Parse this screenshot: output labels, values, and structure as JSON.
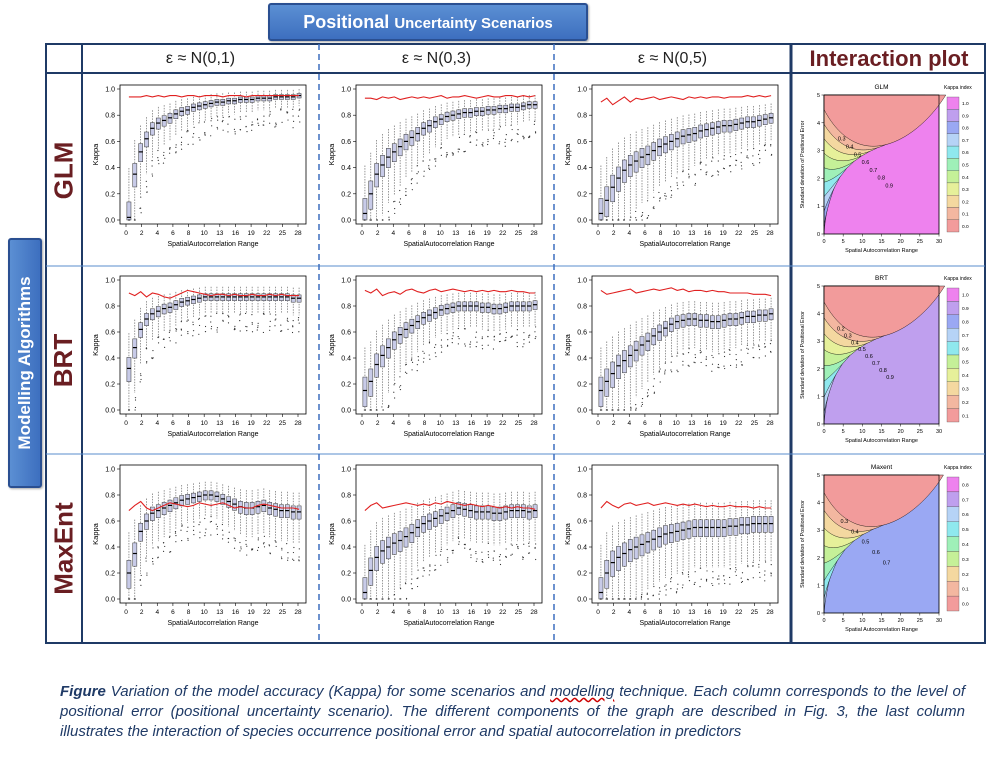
{
  "header": {
    "title_main": "Positional",
    "title_rest": "Uncertainty Scenarios"
  },
  "side_label": "Modelling Algorithms",
  "columns": [
    "ε ≈ N(0,1)",
    "ε ≈ N(0,3)",
    "ε ≈ N(0,5)"
  ],
  "interaction_title": "Interaction plot",
  "rows": [
    "GLM",
    "BRT",
    "MaxEnt"
  ],
  "caption": {
    "lead": "Figure",
    "part1": " Variation of the model accuracy (Kappa) for some scenarios and ",
    "underlined": "modelling",
    "part2": " technique. Each column corresponds to the level of positional error (positional uncertainty scenario). The different components of the graph are described in Fig. 3, the last column illustrates the interaction of species occurrence positional error and spatial autocorrelation in predictors"
  },
  "colors": {
    "frame": "#1f3a66",
    "title_bg": "#4a7fcc",
    "row_label": "#6a1e22",
    "box_fill": "#c8cbe8",
    "median_line": "#e02020"
  },
  "chart_data": [
    {
      "type": "box",
      "model": "GLM",
      "scenario": "ε ≈ N(0,1)",
      "xlabel": "SpatialAutocorrelation Range",
      "ylabel": "Kappa",
      "xticks": [
        "0",
        "2",
        "4",
        "6",
        "8",
        "10",
        "13",
        "16",
        "19",
        "22",
        "25",
        "28"
      ],
      "ylim": [
        0,
        1
      ],
      "yticks": [
        "0.0",
        "0.2",
        "0.4",
        "0.6",
        "0.8",
        "1.0"
      ],
      "box_medians": [
        0.02,
        0.35,
        0.52,
        0.62,
        0.7,
        0.74,
        0.76,
        0.78,
        0.81,
        0.83,
        0.84,
        0.86,
        0.87,
        0.88,
        0.89,
        0.9,
        0.9,
        0.91,
        0.91,
        0.92,
        0.92,
        0.92,
        0.93,
        0.93,
        0.93,
        0.94,
        0.94,
        0.94,
        0.94,
        0.95
      ],
      "red_line": [
        0.94,
        0.94,
        0.94,
        0.95,
        0.94,
        0.95,
        0.94,
        0.95,
        0.95,
        0.94,
        0.95,
        0.95,
        0.94,
        0.95,
        0.95,
        0.95,
        0.94,
        0.95,
        0.95,
        0.95,
        0.94,
        0.95,
        0.95,
        0.95,
        0.95,
        0.95,
        0.95,
        0.95,
        0.95,
        0.95
      ]
    },
    {
      "type": "box",
      "model": "GLM",
      "scenario": "ε ≈ N(0,3)",
      "xlabel": "SpatialAutocorrelation Range",
      "ylabel": "Kappa",
      "xticks": [
        "0",
        "2",
        "4",
        "6",
        "8",
        "10",
        "13",
        "16",
        "19",
        "22",
        "25",
        "28"
      ],
      "ylim": [
        0,
        1
      ],
      "yticks": [
        "0.0",
        "0.2",
        "0.4",
        "0.6",
        "0.8",
        "1.0"
      ],
      "box_medians": [
        0.05,
        0.2,
        0.35,
        0.42,
        0.48,
        0.52,
        0.56,
        0.6,
        0.63,
        0.66,
        0.7,
        0.72,
        0.75,
        0.77,
        0.79,
        0.8,
        0.81,
        0.82,
        0.82,
        0.83,
        0.83,
        0.84,
        0.84,
        0.85,
        0.85,
        0.86,
        0.86,
        0.87,
        0.88,
        0.88
      ],
      "red_line": [
        0.93,
        0.93,
        0.92,
        0.94,
        0.93,
        0.94,
        0.92,
        0.93,
        0.94,
        0.93,
        0.94,
        0.93,
        0.94,
        0.95,
        0.93,
        0.94,
        0.94,
        0.95,
        0.94,
        0.93,
        0.94,
        0.95,
        0.94,
        0.94,
        0.95,
        0.95,
        0.94,
        0.95,
        0.94,
        0.95
      ]
    },
    {
      "type": "box",
      "model": "GLM",
      "scenario": "ε ≈ N(0,5)",
      "xlabel": "SpatialAutocorrelation Range",
      "ylabel": "Kappa",
      "xticks": [
        "0",
        "2",
        "4",
        "6",
        "8",
        "10",
        "13",
        "16",
        "19",
        "22",
        "25",
        "28"
      ],
      "ylim": [
        0,
        1
      ],
      "yticks": [
        "0.0",
        "0.2",
        "0.4",
        "0.6",
        "0.8",
        "1.0"
      ],
      "box_medians": [
        0.05,
        0.15,
        0.25,
        0.32,
        0.38,
        0.42,
        0.45,
        0.48,
        0.5,
        0.53,
        0.56,
        0.58,
        0.6,
        0.62,
        0.64,
        0.65,
        0.66,
        0.68,
        0.69,
        0.7,
        0.71,
        0.72,
        0.72,
        0.73,
        0.74,
        0.75,
        0.75,
        0.76,
        0.77,
        0.78
      ],
      "red_line": [
        0.9,
        0.93,
        0.88,
        0.91,
        0.94,
        0.9,
        0.93,
        0.92,
        0.93,
        0.94,
        0.92,
        0.93,
        0.94,
        0.93,
        0.92,
        0.94,
        0.93,
        0.94,
        0.93,
        0.94,
        0.94,
        0.93,
        0.94,
        0.94,
        0.94,
        0.95,
        0.94,
        0.95,
        0.94,
        0.95
      ]
    },
    {
      "type": "box",
      "model": "BRT",
      "scenario": "ε ≈ N(0,1)",
      "xlabel": "SpatialAutocorrelation Range",
      "ylabel": "Kappa",
      "xticks": [
        "0",
        "2",
        "4",
        "6",
        "8",
        "10",
        "13",
        "16",
        "19",
        "22",
        "25",
        "28"
      ],
      "ylim": [
        0,
        1
      ],
      "yticks": [
        "0.0",
        "0.2",
        "0.4",
        "0.6",
        "0.8",
        "1.0"
      ],
      "box_medians": [
        0.32,
        0.48,
        0.62,
        0.7,
        0.74,
        0.76,
        0.78,
        0.79,
        0.81,
        0.83,
        0.84,
        0.85,
        0.86,
        0.87,
        0.87,
        0.87,
        0.87,
        0.87,
        0.87,
        0.87,
        0.87,
        0.87,
        0.87,
        0.87,
        0.87,
        0.87,
        0.87,
        0.87,
        0.86,
        0.86
      ],
      "red_line": [
        0.9,
        0.88,
        0.91,
        0.87,
        0.9,
        0.89,
        0.87,
        0.86,
        0.88,
        0.9,
        0.92,
        0.91,
        0.9,
        0.89,
        0.88,
        0.89,
        0.89,
        0.88,
        0.89,
        0.88,
        0.88,
        0.89,
        0.88,
        0.88,
        0.89,
        0.88,
        0.89,
        0.88,
        0.88,
        0.88
      ]
    },
    {
      "type": "box",
      "model": "BRT",
      "scenario": "ε ≈ N(0,3)",
      "xlabel": "SpatialAutocorrelation Range",
      "ylabel": "Kappa",
      "xticks": [
        "0",
        "2",
        "4",
        "6",
        "8",
        "10",
        "13",
        "16",
        "19",
        "22",
        "25",
        "28"
      ],
      "ylim": [
        0,
        1
      ],
      "yticks": [
        "0.0",
        "0.2",
        "0.4",
        "0.6",
        "0.8",
        "1.0"
      ],
      "box_medians": [
        0.15,
        0.22,
        0.35,
        0.42,
        0.48,
        0.54,
        0.58,
        0.62,
        0.65,
        0.68,
        0.71,
        0.73,
        0.75,
        0.77,
        0.78,
        0.79,
        0.8,
        0.8,
        0.8,
        0.8,
        0.79,
        0.79,
        0.78,
        0.78,
        0.79,
        0.8,
        0.8,
        0.8,
        0.8,
        0.81
      ],
      "red_line": [
        0.92,
        0.9,
        0.93,
        0.88,
        0.9,
        0.91,
        0.89,
        0.92,
        0.93,
        0.91,
        0.9,
        0.92,
        0.93,
        0.91,
        0.92,
        0.93,
        0.92,
        0.91,
        0.92,
        0.91,
        0.92,
        0.91,
        0.92,
        0.91,
        0.91,
        0.92,
        0.91,
        0.91,
        0.9,
        0.9
      ]
    },
    {
      "type": "box",
      "model": "BRT",
      "scenario": "ε ≈ N(0,5)",
      "xlabel": "SpatialAutocorrelation Range",
      "ylabel": "Kappa",
      "xticks": [
        "0",
        "2",
        "4",
        "6",
        "8",
        "10",
        "13",
        "16",
        "19",
        "22",
        "25",
        "28"
      ],
      "ylim": [
        0,
        1
      ],
      "yticks": [
        "0.0",
        "0.2",
        "0.4",
        "0.6",
        "0.8",
        "1.0"
      ],
      "box_medians": [
        0.15,
        0.22,
        0.28,
        0.34,
        0.38,
        0.42,
        0.46,
        0.5,
        0.53,
        0.57,
        0.6,
        0.63,
        0.66,
        0.68,
        0.69,
        0.7,
        0.7,
        0.69,
        0.69,
        0.68,
        0.68,
        0.69,
        0.7,
        0.7,
        0.71,
        0.72,
        0.72,
        0.73,
        0.73,
        0.74
      ],
      "red_line": [
        0.92,
        0.89,
        0.9,
        0.91,
        0.92,
        0.93,
        0.9,
        0.91,
        0.92,
        0.93,
        0.92,
        0.93,
        0.94,
        0.92,
        0.93,
        0.91,
        0.92,
        0.92,
        0.91,
        0.92,
        0.91,
        0.91,
        0.9,
        0.9,
        0.9,
        0.9,
        0.89,
        0.89,
        0.89,
        0.88
      ]
    },
    {
      "type": "box",
      "model": "MaxEnt",
      "scenario": "ε ≈ N(0,1)",
      "xlabel": "SpatialAutocorrelation Range",
      "ylabel": "Kappa",
      "xticks": [
        "0",
        "2",
        "4",
        "6",
        "8",
        "10",
        "13",
        "16",
        "19",
        "22",
        "25",
        "28"
      ],
      "ylim": [
        0,
        1
      ],
      "yticks": [
        "0.0",
        "0.2",
        "0.4",
        "0.6",
        "0.8",
        "1.0"
      ],
      "box_medians": [
        0.2,
        0.35,
        0.52,
        0.6,
        0.66,
        0.68,
        0.7,
        0.72,
        0.74,
        0.76,
        0.77,
        0.78,
        0.79,
        0.8,
        0.8,
        0.79,
        0.77,
        0.75,
        0.73,
        0.71,
        0.7,
        0.7,
        0.71,
        0.72,
        0.7,
        0.69,
        0.68,
        0.68,
        0.67,
        0.67
      ],
      "red_line": [
        0.68,
        0.72,
        0.75,
        0.7,
        0.68,
        0.7,
        0.72,
        0.74,
        0.73,
        0.72,
        0.71,
        0.72,
        0.74,
        0.73,
        0.72,
        0.73,
        0.74,
        0.72,
        0.7,
        0.71,
        0.7,
        0.7,
        0.72,
        0.73,
        0.72,
        0.71,
        0.7,
        0.7,
        0.7,
        0.69
      ]
    },
    {
      "type": "box",
      "model": "MaxEnt",
      "scenario": "ε ≈ N(0,3)",
      "xlabel": "SpatialAutocorrelation Range",
      "ylabel": "Kappa",
      "xticks": [
        "0",
        "2",
        "4",
        "6",
        "8",
        "10",
        "13",
        "16",
        "19",
        "22",
        "25",
        "28"
      ],
      "ylim": [
        0,
        1
      ],
      "yticks": [
        "0.0",
        "0.2",
        "0.4",
        "0.6",
        "0.8",
        "1.0"
      ],
      "box_medians": [
        0.05,
        0.22,
        0.32,
        0.37,
        0.4,
        0.43,
        0.45,
        0.48,
        0.51,
        0.55,
        0.58,
        0.6,
        0.62,
        0.64,
        0.66,
        0.68,
        0.7,
        0.69,
        0.68,
        0.67,
        0.67,
        0.67,
        0.66,
        0.66,
        0.67,
        0.68,
        0.68,
        0.68,
        0.67,
        0.68
      ],
      "red_line": [
        0.68,
        0.72,
        0.74,
        0.7,
        0.71,
        0.72,
        0.73,
        0.74,
        0.73,
        0.72,
        0.73,
        0.72,
        0.74,
        0.73,
        0.75,
        0.74,
        0.73,
        0.72,
        0.73,
        0.72,
        0.71,
        0.72,
        0.71,
        0.7,
        0.71,
        0.7,
        0.71,
        0.7,
        0.7,
        0.69
      ]
    },
    {
      "type": "box",
      "model": "MaxEnt",
      "scenario": "ε ≈ N(0,5)",
      "xlabel": "SpatialAutocorrelation Range",
      "ylabel": "Kappa",
      "xticks": [
        "0",
        "2",
        "4",
        "6",
        "8",
        "10",
        "13",
        "16",
        "19",
        "22",
        "25",
        "28"
      ],
      "ylim": [
        0,
        1
      ],
      "yticks": [
        "0.0",
        "0.2",
        "0.4",
        "0.6",
        "0.8",
        "1.0"
      ],
      "box_medians": [
        0.05,
        0.2,
        0.28,
        0.32,
        0.35,
        0.38,
        0.4,
        0.42,
        0.44,
        0.46,
        0.48,
        0.5,
        0.51,
        0.52,
        0.53,
        0.54,
        0.55,
        0.55,
        0.55,
        0.55,
        0.55,
        0.55,
        0.56,
        0.56,
        0.57,
        0.57,
        0.58,
        0.58,
        0.58,
        0.58
      ],
      "red_line": [
        0.7,
        0.75,
        0.72,
        0.7,
        0.73,
        0.74,
        0.72,
        0.73,
        0.74,
        0.72,
        0.73,
        0.74,
        0.73,
        0.72,
        0.73,
        0.72,
        0.73,
        0.72,
        0.71,
        0.72,
        0.71,
        0.71,
        0.72,
        0.71,
        0.71,
        0.71,
        0.7,
        0.71,
        0.7,
        0.7
      ]
    },
    {
      "type": "contour",
      "title": "GLM",
      "legend_title": "Kappa index",
      "xlabel": "Spatial Autocorrelation Range",
      "ylabel": "Standard deviation of Positional Error",
      "xticks": [
        "0",
        "5",
        "10",
        "15",
        "20",
        "25",
        "30"
      ],
      "yticks": [
        "0",
        "1",
        "2",
        "3",
        "4",
        "5"
      ],
      "xlim": [
        0,
        30
      ],
      "ylim": [
        0,
        5
      ],
      "levels": [
        "1.0",
        "0.9",
        "0.8",
        "0.7",
        "0.6",
        "0.5",
        "0.4",
        "0.3",
        "0.2",
        "0.1",
        "0.0"
      ],
      "contour_labels": [
        "0.3",
        "0.4",
        "0.5",
        "0.6",
        "0.7",
        "0.8",
        "0.9"
      ]
    },
    {
      "type": "contour",
      "title": "BRT",
      "legend_title": "Kappa index",
      "xlabel": "Spatial Autocorrelation Range",
      "ylabel": "Standard deviation of Positional Error",
      "xticks": [
        "0",
        "5",
        "10",
        "15",
        "20",
        "25",
        "30"
      ],
      "yticks": [
        "0",
        "1",
        "2",
        "3",
        "4",
        "5"
      ],
      "xlim": [
        0,
        30
      ],
      "ylim": [
        0,
        5
      ],
      "levels": [
        "1.0",
        "0.9",
        "0.8",
        "0.7",
        "0.6",
        "0.5",
        "0.4",
        "0.3",
        "0.2",
        "0.1"
      ],
      "contour_labels": [
        "0.2",
        "0.3",
        "0.4",
        "0.5",
        "0.6",
        "0.7",
        "0.8",
        "0.9"
      ]
    },
    {
      "type": "contour",
      "title": "Maxent",
      "legend_title": "Kappa index",
      "xlabel": "Spatial Autocorrelation Range",
      "ylabel": "Standard deviation of Positional Error",
      "xticks": [
        "0",
        "5",
        "10",
        "15",
        "20",
        "25",
        "30"
      ],
      "yticks": [
        "0",
        "1",
        "2",
        "3",
        "4",
        "5"
      ],
      "xlim": [
        0,
        30
      ],
      "ylim": [
        0,
        5
      ],
      "levels": [
        "0.8",
        "0.7",
        "0.6",
        "0.5",
        "0.4",
        "0.3",
        "0.2",
        "0.1",
        "0.0"
      ],
      "contour_labels": [
        "0.3",
        "0.4",
        "0.5",
        "0.6",
        "0.7"
      ]
    }
  ]
}
